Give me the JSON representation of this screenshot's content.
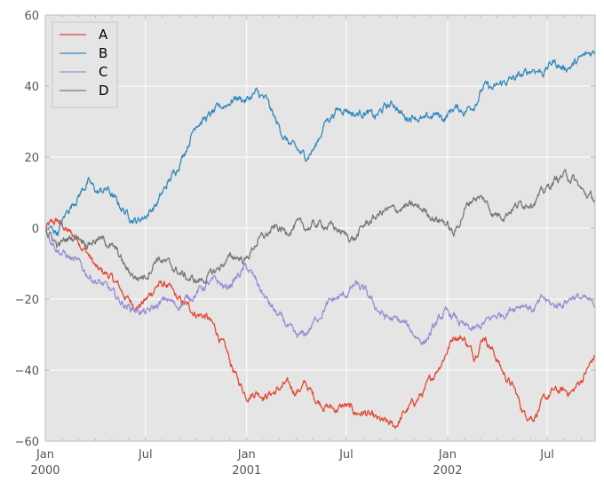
{
  "chart_data": {
    "type": "line",
    "title": "",
    "xlabel": "",
    "ylabel": "",
    "xlim": [
      "2000-01-01",
      "2002-09-26"
    ],
    "ylim": [
      -60,
      60
    ],
    "grid": true,
    "legend_position": "top-left",
    "y_ticks": [
      60,
      40,
      20,
      0,
      -20,
      -40,
      -60
    ],
    "y_tick_labels": [
      "60",
      "40",
      "20",
      "0",
      "−20",
      "−40",
      "−60"
    ],
    "x_ticks": [
      {
        "date": "2000-01-01",
        "line1": "Jan",
        "line2": "2000"
      },
      {
        "date": "2000-07-01",
        "line1": "Jul",
        "line2": ""
      },
      {
        "date": "2001-01-01",
        "line1": "Jan",
        "line2": "2001"
      },
      {
        "date": "2001-07-01",
        "line1": "Jul",
        "line2": ""
      },
      {
        "date": "2002-01-01",
        "line1": "Jan",
        "line2": "2002"
      },
      {
        "date": "2002-07-01",
        "line1": "Jul",
        "line2": ""
      }
    ],
    "colors": {
      "background": "#e5e5e5",
      "grid": "#ffffff",
      "frame": "#bcbcbc"
    },
    "series": [
      {
        "name": "A",
        "color": "#e24a33",
        "points": [
          [
            "2000-01-01",
            0
          ],
          [
            "2000-01-24",
            2
          ],
          [
            "2000-02-11",
            -1
          ],
          [
            "2000-02-29",
            -3
          ],
          [
            "2000-03-18",
            -7
          ],
          [
            "2000-04-05",
            -12
          ],
          [
            "2000-04-23",
            -13
          ],
          [
            "2000-05-11",
            -16
          ],
          [
            "2000-05-29",
            -20
          ],
          [
            "2000-06-16",
            -22
          ],
          [
            "2000-07-04",
            -20
          ],
          [
            "2000-07-22",
            -16
          ],
          [
            "2000-08-09",
            -16
          ],
          [
            "2000-08-27",
            -20
          ],
          [
            "2000-09-14",
            -22
          ],
          [
            "2000-10-02",
            -24
          ],
          [
            "2000-10-20",
            -25
          ],
          [
            "2000-11-07",
            -29
          ],
          [
            "2000-11-25",
            -35
          ],
          [
            "2000-12-13",
            -42
          ],
          [
            "2000-12-31",
            -47
          ],
          [
            "2001-01-18",
            -46
          ],
          [
            "2001-02-05",
            -47
          ],
          [
            "2001-02-23",
            -46
          ],
          [
            "2001-03-13",
            -44
          ],
          [
            "2001-03-31",
            -46
          ],
          [
            "2001-04-18",
            -44
          ],
          [
            "2001-05-06",
            -48
          ],
          [
            "2001-05-24",
            -50
          ],
          [
            "2001-06-11",
            -51
          ],
          [
            "2001-06-29",
            -50
          ],
          [
            "2001-07-17",
            -52
          ],
          [
            "2001-08-04",
            -52
          ],
          [
            "2001-08-22",
            -54
          ],
          [
            "2001-09-09",
            -55
          ],
          [
            "2001-09-27",
            -56
          ],
          [
            "2001-10-15",
            -52
          ],
          [
            "2001-11-02",
            -49
          ],
          [
            "2001-11-20",
            -46
          ],
          [
            "2001-12-08",
            -41
          ],
          [
            "2001-12-26",
            -36
          ],
          [
            "2002-01-13",
            -30
          ],
          [
            "2002-01-31",
            -31
          ],
          [
            "2002-02-18",
            -36
          ],
          [
            "2002-03-08",
            -30
          ],
          [
            "2002-03-26",
            -35
          ],
          [
            "2002-04-13",
            -41
          ],
          [
            "2002-05-01",
            -45
          ],
          [
            "2002-05-19",
            -52
          ],
          [
            "2002-06-06",
            -53
          ],
          [
            "2002-06-24",
            -49
          ],
          [
            "2002-07-12",
            -46
          ],
          [
            "2002-07-30",
            -46
          ],
          [
            "2002-08-17",
            -46
          ],
          [
            "2002-09-04",
            -42
          ],
          [
            "2002-09-26",
            -36
          ]
        ]
      },
      {
        "name": "B",
        "color": "#348abd",
        "points": [
          [
            "2000-01-01",
            0
          ],
          [
            "2000-01-24",
            -1
          ],
          [
            "2000-02-11",
            5
          ],
          [
            "2000-02-29",
            9
          ],
          [
            "2000-03-18",
            13
          ],
          [
            "2000-04-05",
            10
          ],
          [
            "2000-04-23",
            11
          ],
          [
            "2000-05-11",
            7
          ],
          [
            "2000-05-29",
            4
          ],
          [
            "2000-06-16",
            2
          ],
          [
            "2000-07-04",
            4
          ],
          [
            "2000-07-22",
            7
          ],
          [
            "2000-08-09",
            12
          ],
          [
            "2000-08-27",
            17
          ],
          [
            "2000-09-14",
            23
          ],
          [
            "2000-10-02",
            30
          ],
          [
            "2000-10-20",
            31
          ],
          [
            "2000-11-07",
            33
          ],
          [
            "2000-11-25",
            35
          ],
          [
            "2000-12-13",
            37
          ],
          [
            "2000-12-31",
            36
          ],
          [
            "2001-01-18",
            38
          ],
          [
            "2001-02-05",
            36
          ],
          [
            "2001-02-23",
            30
          ],
          [
            "2001-03-13",
            25
          ],
          [
            "2001-03-31",
            22
          ],
          [
            "2001-04-18",
            20
          ],
          [
            "2001-05-06",
            23
          ],
          [
            "2001-05-24",
            30
          ],
          [
            "2001-06-11",
            33
          ],
          [
            "2001-06-29",
            34
          ],
          [
            "2001-07-17",
            32
          ],
          [
            "2001-08-04",
            33
          ],
          [
            "2001-08-22",
            31
          ],
          [
            "2001-09-09",
            34
          ],
          [
            "2001-09-27",
            35
          ],
          [
            "2001-10-15",
            31
          ],
          [
            "2001-11-02",
            32
          ],
          [
            "2001-11-20",
            30
          ],
          [
            "2001-12-08",
            32
          ],
          [
            "2001-12-26",
            31
          ],
          [
            "2002-01-13",
            34
          ],
          [
            "2002-01-31",
            33
          ],
          [
            "2002-02-18",
            35
          ],
          [
            "2002-03-08",
            40
          ],
          [
            "2002-03-26",
            39
          ],
          [
            "2002-04-13",
            41
          ],
          [
            "2002-05-01",
            42
          ],
          [
            "2002-05-19",
            43
          ],
          [
            "2002-06-06",
            45
          ],
          [
            "2002-06-24",
            44
          ],
          [
            "2002-07-12",
            47
          ],
          [
            "2002-07-30",
            45
          ],
          [
            "2002-08-17",
            46
          ],
          [
            "2002-09-04",
            48
          ],
          [
            "2002-09-26",
            50
          ]
        ]
      },
      {
        "name": "C",
        "color": "#988ed5",
        "points": [
          [
            "2000-01-01",
            0
          ],
          [
            "2000-01-24",
            -6
          ],
          [
            "2000-02-11",
            -8
          ],
          [
            "2000-02-29",
            -10
          ],
          [
            "2000-03-18",
            -13
          ],
          [
            "2000-04-05",
            -15
          ],
          [
            "2000-04-23",
            -17
          ],
          [
            "2000-05-11",
            -20
          ],
          [
            "2000-05-29",
            -22
          ],
          [
            "2000-06-16",
            -23
          ],
          [
            "2000-07-04",
            -24
          ],
          [
            "2000-07-22",
            -22
          ],
          [
            "2000-08-09",
            -20
          ],
          [
            "2000-08-27",
            -22
          ],
          [
            "2000-09-14",
            -20
          ],
          [
            "2000-10-02",
            -18
          ],
          [
            "2000-10-20",
            -16
          ],
          [
            "2000-11-07",
            -15
          ],
          [
            "2000-11-25",
            -17
          ],
          [
            "2000-12-13",
            -14
          ],
          [
            "2000-12-31",
            -11
          ],
          [
            "2001-01-18",
            -15
          ],
          [
            "2001-02-05",
            -20
          ],
          [
            "2001-02-23",
            -24
          ],
          [
            "2001-03-13",
            -27
          ],
          [
            "2001-03-31",
            -31
          ],
          [
            "2001-04-18",
            -30
          ],
          [
            "2001-05-06",
            -26
          ],
          [
            "2001-05-24",
            -22
          ],
          [
            "2001-06-11",
            -20
          ],
          [
            "2001-06-29",
            -19
          ],
          [
            "2001-07-17",
            -16
          ],
          [
            "2001-08-04",
            -18
          ],
          [
            "2001-08-22",
            -22
          ],
          [
            "2001-09-09",
            -25
          ],
          [
            "2001-09-27",
            -26
          ],
          [
            "2001-10-15",
            -27
          ],
          [
            "2001-11-02",
            -30
          ],
          [
            "2001-11-20",
            -32
          ],
          [
            "2001-12-08",
            -28
          ],
          [
            "2001-12-26",
            -24
          ],
          [
            "2002-01-13",
            -25
          ],
          [
            "2002-01-31",
            -28
          ],
          [
            "2002-02-18",
            -29
          ],
          [
            "2002-03-08",
            -27
          ],
          [
            "2002-03-26",
            -25
          ],
          [
            "2002-04-13",
            -24
          ],
          [
            "2002-05-01",
            -22
          ],
          [
            "2002-05-19",
            -21
          ],
          [
            "2002-06-06",
            -23
          ],
          [
            "2002-06-24",
            -20
          ],
          [
            "2002-07-12",
            -22
          ],
          [
            "2002-07-30",
            -21
          ],
          [
            "2002-08-17",
            -19
          ],
          [
            "2002-09-04",
            -20
          ],
          [
            "2002-09-26",
            -22
          ]
        ]
      },
      {
        "name": "D",
        "color": "#777777",
        "points": [
          [
            "2000-01-01",
            0
          ],
          [
            "2000-01-24",
            -5
          ],
          [
            "2000-02-11",
            -3
          ],
          [
            "2000-02-29",
            -2
          ],
          [
            "2000-03-18",
            -4
          ],
          [
            "2000-04-05",
            -3
          ],
          [
            "2000-04-23",
            -4
          ],
          [
            "2000-05-11",
            -7
          ],
          [
            "2000-05-29",
            -12
          ],
          [
            "2000-06-16",
            -14
          ],
          [
            "2000-07-04",
            -13
          ],
          [
            "2000-07-22",
            -8
          ],
          [
            "2000-08-09",
            -10
          ],
          [
            "2000-08-27",
            -12
          ],
          [
            "2000-09-14",
            -14
          ],
          [
            "2000-10-02",
            -15
          ],
          [
            "2000-10-20",
            -14
          ],
          [
            "2000-11-07",
            -12
          ],
          [
            "2000-11-25",
            -9
          ],
          [
            "2000-12-13",
            -8
          ],
          [
            "2000-12-31",
            -9
          ],
          [
            "2001-01-18",
            -4
          ],
          [
            "2001-02-05",
            -2
          ],
          [
            "2001-02-23",
            0
          ],
          [
            "2001-03-13",
            -1
          ],
          [
            "2001-03-31",
            1
          ],
          [
            "2001-04-18",
            0
          ],
          [
            "2001-05-06",
            1
          ],
          [
            "2001-05-24",
            1
          ],
          [
            "2001-06-11",
            0
          ],
          [
            "2001-06-29",
            -2
          ],
          [
            "2001-07-17",
            -3
          ],
          [
            "2001-08-04",
            1
          ],
          [
            "2001-08-22",
            3
          ],
          [
            "2001-09-09",
            5
          ],
          [
            "2001-09-27",
            5
          ],
          [
            "2001-10-15",
            6
          ],
          [
            "2001-11-02",
            6
          ],
          [
            "2001-11-20",
            5
          ],
          [
            "2001-12-08",
            3
          ],
          [
            "2001-12-26",
            2
          ],
          [
            "2002-01-13",
            -2
          ],
          [
            "2002-01-31",
            5
          ],
          [
            "2002-02-18",
            9
          ],
          [
            "2002-03-08",
            8
          ],
          [
            "2002-03-26",
            4
          ],
          [
            "2002-04-13",
            4
          ],
          [
            "2002-05-01",
            6
          ],
          [
            "2002-05-19",
            7
          ],
          [
            "2002-06-06",
            8
          ],
          [
            "2002-06-24",
            10
          ],
          [
            "2002-07-12",
            13
          ],
          [
            "2002-07-30",
            15
          ],
          [
            "2002-08-17",
            14
          ],
          [
            "2002-09-04",
            10
          ],
          [
            "2002-09-26",
            8
          ]
        ]
      }
    ]
  }
}
